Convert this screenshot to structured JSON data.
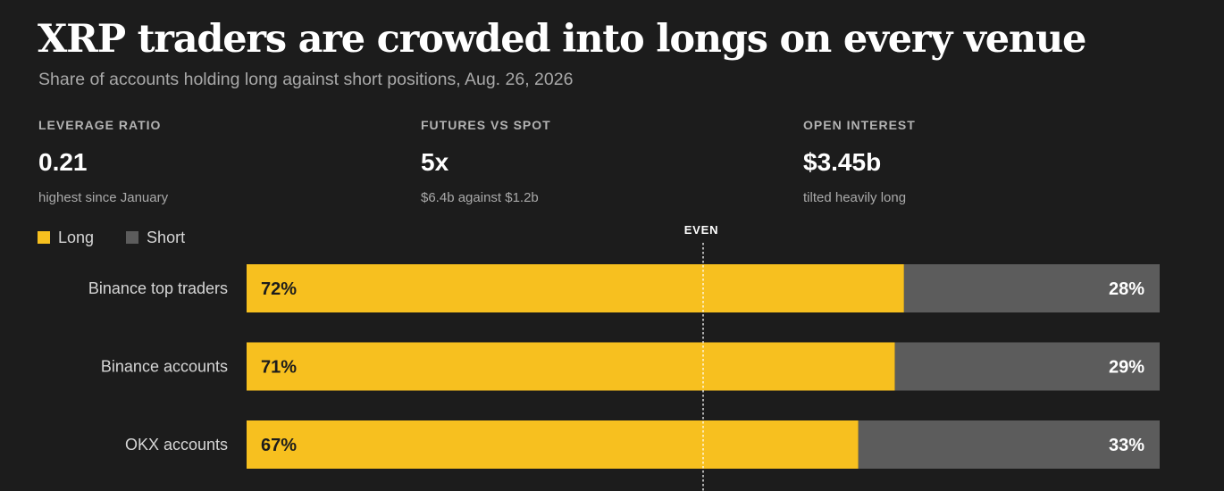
{
  "header": {
    "title": "XRP traders are crowded into longs on every venue",
    "subtitle": "Share of accounts holding long against short positions, Aug. 26, 2026"
  },
  "stats": [
    {
      "label": "LEVERAGE RATIO",
      "value": "0.21",
      "note": "highest since January"
    },
    {
      "label": "FUTURES VS SPOT",
      "value": "5x",
      "note": "$6.4b against $1.2b"
    },
    {
      "label": "OPEN INTEREST",
      "value": "$3.45b",
      "note": "tilted heavily long"
    }
  ],
  "legend": {
    "long_label": "Long",
    "short_label": "Short"
  },
  "colors": {
    "long": "#f7c01f",
    "short": "#5c5c5c",
    "background": "#1c1c1c"
  },
  "chart_data": {
    "type": "bar",
    "orientation": "horizontal",
    "stacked": true,
    "title": "XRP traders are crowded into longs on every venue",
    "subtitle": "Share of accounts holding long against short positions, Aug. 26, 2026",
    "categories": [
      "Binance top traders",
      "Binance accounts",
      "OKX accounts"
    ],
    "series": [
      {
        "name": "Long",
        "values": [
          72,
          71,
          67
        ],
        "labels": [
          "72%",
          "71%",
          "67%"
        ]
      },
      {
        "name": "Short",
        "values": [
          28,
          29,
          33
        ],
        "labels": [
          "28%",
          "29%",
          "33%"
        ]
      }
    ],
    "xlim": [
      0,
      100
    ],
    "reference_line": {
      "value": 50,
      "label": "EVEN"
    },
    "legend_position": "top-left",
    "grid": false
  }
}
